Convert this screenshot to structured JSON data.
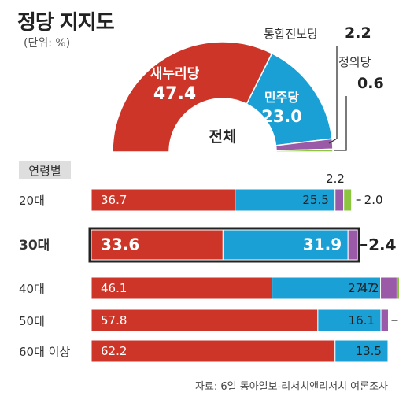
{
  "title": "정당 지지도",
  "unit": "(단위: %)",
  "source": "자료: 6일 동아일보-리서치앤리서치 여론조사",
  "colors": {
    "saenuri": "#cc3527",
    "minju": "#1aa0d5",
    "tonghap": "#9b5aa8",
    "jeongui": "#8cc63f"
  },
  "chart_data": [
    {
      "type": "pie",
      "variant": "half-donut",
      "center_label": "전체",
      "slices": [
        {
          "name": "새누리당",
          "value": 47.4,
          "value_label": "47.4"
        },
        {
          "name": "민주당",
          "value": 23.0,
          "value_label": "23.0"
        },
        {
          "name": "통합진보당",
          "value": 2.2,
          "value_label": "2.2"
        },
        {
          "name": "정의당",
          "value": 0.6,
          "value_label": "0.6"
        }
      ]
    },
    {
      "type": "bar",
      "orientation": "horizontal",
      "stacked": true,
      "group_label": "연령별",
      "categories": [
        "20대",
        "30대",
        "40대",
        "50대",
        "60대 이상"
      ],
      "highlight": "30대",
      "series": [
        {
          "name": "새누리당",
          "values": [
            36.7,
            33.6,
            46.1,
            57.8,
            62.2
          ],
          "labels": [
            "36.7",
            "33.6",
            "46.1",
            "57.8",
            "62.2"
          ]
        },
        {
          "name": "민주당",
          "values": [
            25.5,
            31.9,
            27.7,
            16.1,
            13.5
          ],
          "labels": [
            "25.5",
            "31.9",
            "27.7",
            "16.1",
            "13.5"
          ]
        },
        {
          "name": "통합진보당",
          "values": [
            2.2,
            2.4,
            4.2,
            1.9,
            null
          ],
          "labels": [
            "2.2",
            "2.4",
            "4.2",
            "1.9",
            ""
          ]
        },
        {
          "name": "정의당",
          "values": [
            2.0,
            null,
            1.3,
            null,
            null
          ],
          "labels": [
            "2.0",
            "",
            "1.3",
            "",
            ""
          ]
        }
      ]
    }
  ]
}
